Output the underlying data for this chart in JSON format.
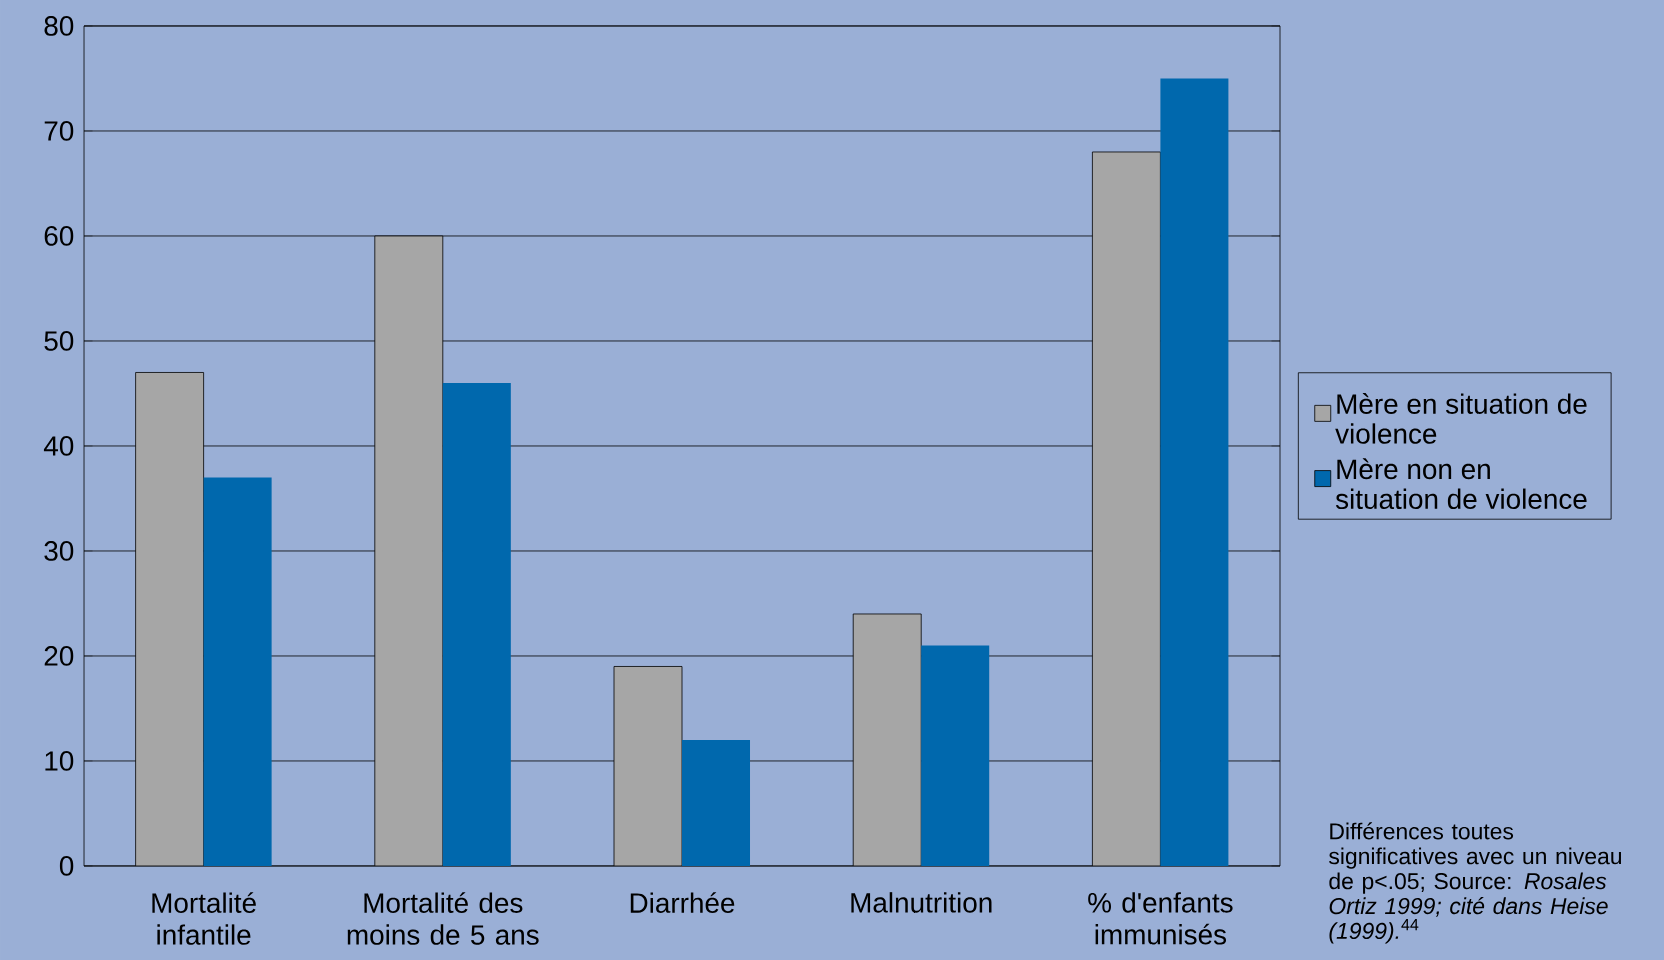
{
  "chart_data": {
    "type": "bar",
    "categories": [
      "Mortalité infantile",
      "Mortalité des moins de 5 ans",
      "Diarrhée",
      "Malnutrition",
      "% d'enfants immunisés"
    ],
    "series": [
      {
        "name": "Mère en situation de violence",
        "color": "#a6a6a6",
        "values": [
          47,
          60,
          19,
          24,
          68
        ]
      },
      {
        "name": "Mère non en situation de violence",
        "color": "#0068ad",
        "values": [
          37,
          46,
          12,
          21,
          75
        ]
      }
    ],
    "ylim": [
      0,
      80
    ],
    "yticks": [
      0,
      10,
      20,
      30,
      40,
      50,
      60,
      70,
      80
    ],
    "grid": "y",
    "legend": "right",
    "annotations": [
      "Différences toutes significatives avec un niveau de p<.05; Source: *Rosales Ortiz 1999; cité dans Heise (1999).*$^{44}$"
    ]
  }
}
